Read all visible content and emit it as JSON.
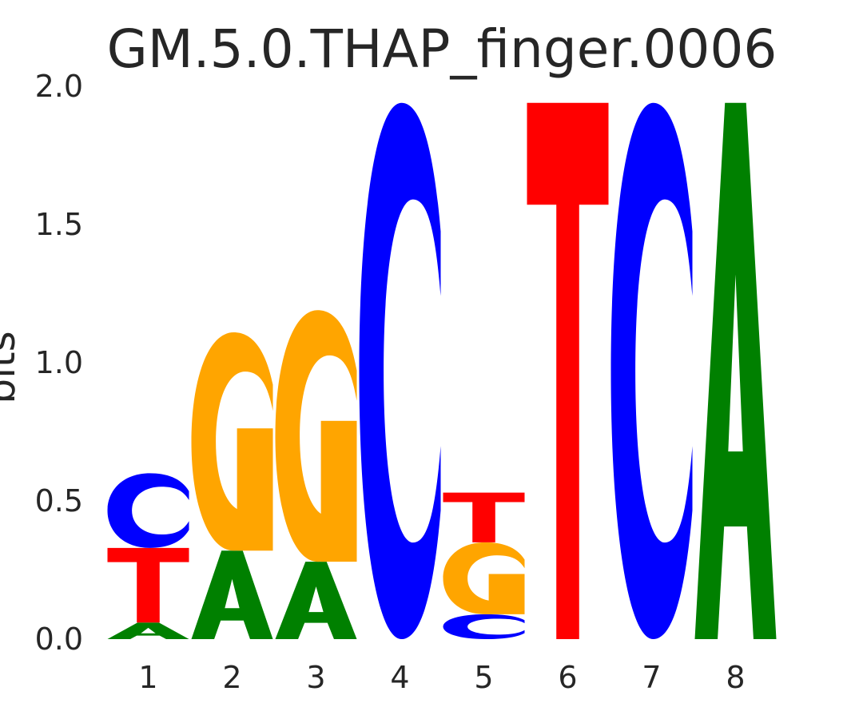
{
  "chart_data": {
    "type": "sequence-logo",
    "title": "GM.5.0.THAP_finger.0006",
    "ylabel": "bits",
    "xlabel": "",
    "ylim": [
      0,
      2.0
    ],
    "yticks": [
      "0.0",
      "0.5",
      "1.0",
      "1.5",
      "2.0"
    ],
    "positions": [
      "1",
      "2",
      "3",
      "4",
      "5",
      "6",
      "7",
      "8"
    ],
    "colors": {
      "A": "#008000",
      "C": "#0000ff",
      "G": "#ffa500",
      "T": "#ff0000"
    },
    "columns": [
      [
        {
          "base": "A",
          "bits": 0.06
        },
        {
          "base": "T",
          "bits": 0.27
        },
        {
          "base": "C",
          "bits": 0.27
        }
      ],
      [
        {
          "base": "A",
          "bits": 0.32
        },
        {
          "base": "G",
          "bits": 0.79
        }
      ],
      [
        {
          "base": "A",
          "bits": 0.28
        },
        {
          "base": "G",
          "bits": 0.91
        }
      ],
      [
        {
          "base": "C",
          "bits": 1.94
        }
      ],
      [
        {
          "base": "C",
          "bits": 0.09
        },
        {
          "base": "G",
          "bits": 0.26
        },
        {
          "base": "T",
          "bits": 0.18
        }
      ],
      [
        {
          "base": "T",
          "bits": 1.94
        }
      ],
      [
        {
          "base": "C",
          "bits": 1.94
        }
      ],
      [
        {
          "base": "A",
          "bits": 1.94
        }
      ]
    ]
  }
}
